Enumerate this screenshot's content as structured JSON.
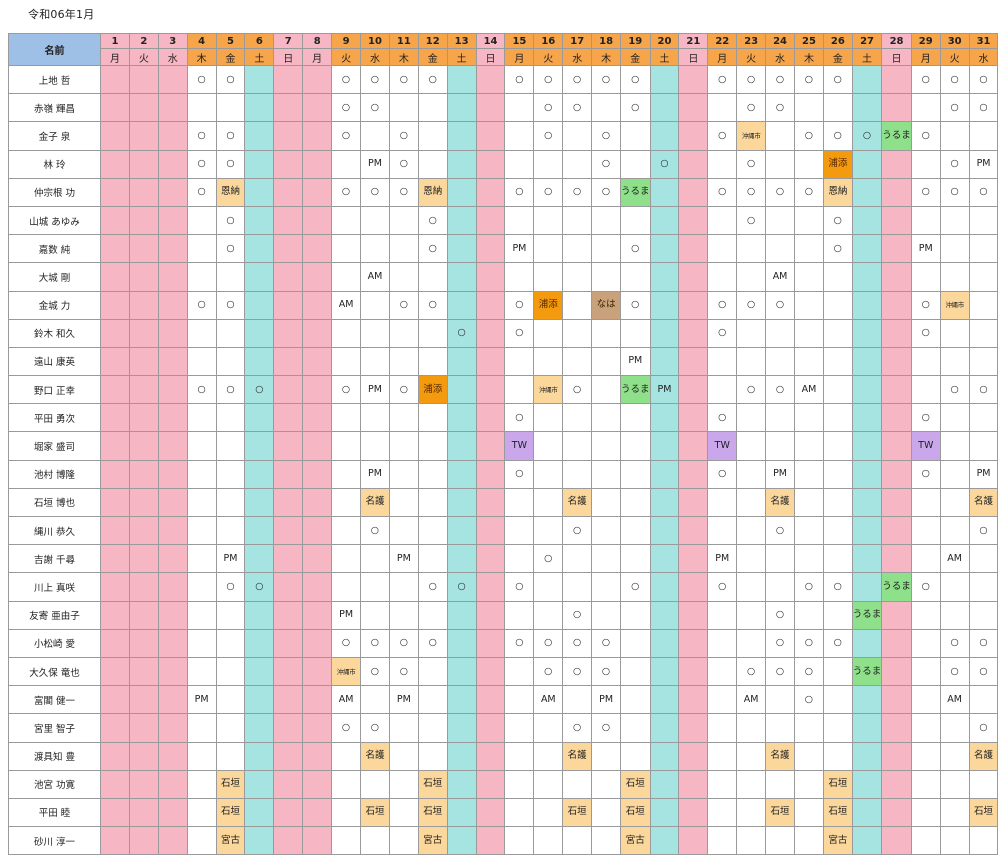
{
  "title": "令和06年1月",
  "header": {
    "name_label": "名前"
  },
  "days": [
    {
      "n": "1",
      "w": "月"
    },
    {
      "n": "2",
      "w": "火"
    },
    {
      "n": "3",
      "w": "水"
    },
    {
      "n": "4",
      "w": "木"
    },
    {
      "n": "5",
      "w": "金"
    },
    {
      "n": "6",
      "w": "土"
    },
    {
      "n": "7",
      "w": "日"
    },
    {
      "n": "8",
      "w": "月"
    },
    {
      "n": "9",
      "w": "火"
    },
    {
      "n": "10",
      "w": "水"
    },
    {
      "n": "11",
      "w": "木"
    },
    {
      "n": "12",
      "w": "金"
    },
    {
      "n": "13",
      "w": "土"
    },
    {
      "n": "14",
      "w": "日"
    },
    {
      "n": "15",
      "w": "月"
    },
    {
      "n": "16",
      "w": "火"
    },
    {
      "n": "17",
      "w": "水"
    },
    {
      "n": "18",
      "w": "木"
    },
    {
      "n": "19",
      "w": "金"
    },
    {
      "n": "20",
      "w": "土"
    },
    {
      "n": "21",
      "w": "日"
    },
    {
      "n": "22",
      "w": "月"
    },
    {
      "n": "23",
      "w": "火"
    },
    {
      "n": "24",
      "w": "水"
    },
    {
      "n": "25",
      "w": "木"
    },
    {
      "n": "26",
      "w": "金"
    },
    {
      "n": "27",
      "w": "土"
    },
    {
      "n": "28",
      "w": "日"
    },
    {
      "n": "29",
      "w": "月"
    },
    {
      "n": "30",
      "w": "火"
    },
    {
      "n": "31",
      "w": "水"
    }
  ],
  "pink_days": [
    1,
    2,
    3,
    7,
    8,
    14,
    21,
    28
  ],
  "teal_days": [
    6,
    13,
    20,
    27
  ],
  "colors": {
    "header_orange": "#f7a54b",
    "name_header_blue": "#9fc0e6",
    "holiday_pink": "#f7b6c4",
    "saturday_teal": "#a6e4e2",
    "badge_tan": "#fbd79c",
    "badge_orange": "#f39a0e",
    "badge_brown": "#c9a27b",
    "badge_green": "#8fe08a",
    "badge_purple": "#c9a7ea"
  },
  "people": [
    {
      "name": "上地 哲",
      "cells": {
        "4": "○",
        "5": "○",
        "9": "○",
        "10": "○",
        "11": "○",
        "12": "○",
        "15": "○",
        "16": "○",
        "17": "○",
        "18": "○",
        "19": "○",
        "22": "○",
        "23": "○",
        "24": "○",
        "25": "○",
        "26": "○",
        "29": "○",
        "30": "○",
        "31": "○"
      }
    },
    {
      "name": "赤嶺 輝昌",
      "cells": {
        "9": "○",
        "10": "○",
        "16": "○",
        "17": "○",
        "19": "○",
        "23": "○",
        "24": "○",
        "30": "○",
        "31": "○"
      }
    },
    {
      "name": "金子 泉",
      "cells": {
        "4": "○",
        "5": "○",
        "9": "○",
        "11": "○",
        "16": "○",
        "18": "○",
        "22": "○",
        "23": "沖縄市",
        "25": "○",
        "26": "○",
        "27": "○",
        "28": "うるま",
        "29": "○"
      }
    },
    {
      "name": "林 玲",
      "cells": {
        "4": "○",
        "5": "○",
        "10": "PM",
        "11": "○",
        "18": "○",
        "20": "○",
        "23": "○",
        "26": "浦添",
        "30": "○",
        "31": "PM"
      }
    },
    {
      "name": "仲宗根 功",
      "cells": {
        "4": "○",
        "5": "恩納",
        "9": "○",
        "10": "○",
        "11": "○",
        "12": "恩納",
        "15": "○",
        "16": "○",
        "17": "○",
        "18": "○",
        "19": "うるま",
        "22": "○",
        "23": "○",
        "24": "○",
        "25": "○",
        "26": "恩納",
        "29": "○",
        "30": "○",
        "31": "○"
      }
    },
    {
      "name": "山城 あゆみ",
      "cells": {
        "5": "○",
        "12": "○",
        "23": "○",
        "26": "○"
      }
    },
    {
      "name": "嘉数 純",
      "cells": {
        "5": "○",
        "12": "○",
        "15": "PM",
        "19": "○",
        "26": "○",
        "29": "PM"
      }
    },
    {
      "name": "大城 剛",
      "cells": {
        "10": "AM",
        "24": "AM"
      }
    },
    {
      "name": "金城 力",
      "cells": {
        "4": "○",
        "5": "○",
        "9": "AM",
        "11": "○",
        "12": "○",
        "15": "○",
        "16": "浦添",
        "18": "なは",
        "19": "○",
        "22": "○",
        "23": "○",
        "24": "○",
        "29": "○",
        "30": "沖縄市"
      }
    },
    {
      "name": "鈴木 和久",
      "cells": {
        "13": "○",
        "15": "○",
        "22": "○",
        "29": "○"
      }
    },
    {
      "name": "遠山 康英",
      "cells": {
        "19": "PM"
      }
    },
    {
      "name": "野口 正幸",
      "cells": {
        "4": "○",
        "5": "○",
        "6": "○",
        "9": "○",
        "10": "PM",
        "11": "○",
        "12": "浦添",
        "16": "沖縄市",
        "17": "○",
        "19": "うるま",
        "20": "PM",
        "23": "○",
        "24": "○",
        "25": "AM",
        "30": "○",
        "31": "○"
      }
    },
    {
      "name": "平田 勇次",
      "cells": {
        "15": "○",
        "22": "○",
        "29": "○"
      }
    },
    {
      "name": "堀家 盛司",
      "cells": {
        "15": "TW",
        "22": "TW",
        "29": "TW"
      }
    },
    {
      "name": "池村 博隆",
      "cells": {
        "10": "PM",
        "15": "○",
        "22": "○",
        "24": "PM",
        "29": "○",
        "31": "PM"
      }
    },
    {
      "name": "石垣 博也",
      "cells": {
        "10": "名護",
        "17": "名護",
        "24": "名護",
        "31": "名護"
      }
    },
    {
      "name": "縄川 恭久",
      "cells": {
        "10": "○",
        "17": "○",
        "24": "○",
        "31": "○"
      }
    },
    {
      "name": "吉謝 千尋",
      "cells": {
        "5": "PM",
        "11": "PM",
        "16": "○",
        "22": "PM",
        "30": "AM"
      }
    },
    {
      "name": "川上 真咲",
      "cells": {
        "5": "○",
        "6": "○",
        "12": "○",
        "13": "○",
        "15": "○",
        "19": "○",
        "22": "○",
        "25": "○",
        "26": "○",
        "28": "うるま",
        "29": "○"
      }
    },
    {
      "name": "友寄 亜由子",
      "cells": {
        "9": "PM",
        "17": "○",
        "24": "○",
        "27": "うるま"
      }
    },
    {
      "name": "小松崎 愛",
      "cells": {
        "9": "○",
        "10": "○",
        "11": "○",
        "12": "○",
        "15": "○",
        "16": "○",
        "17": "○",
        "18": "○",
        "24": "○",
        "25": "○",
        "26": "○",
        "30": "○",
        "31": "○"
      }
    },
    {
      "name": "大久保 竜也",
      "cells": {
        "9": "沖縄市",
        "10": "○",
        "11": "○",
        "16": "○",
        "17": "○",
        "18": "○",
        "23": "○",
        "24": "○",
        "25": "○",
        "27": "うるま",
        "30": "○",
        "31": "○"
      }
    },
    {
      "name": "富閣 健一",
      "cells": {
        "4": "PM",
        "9": "AM",
        "11": "PM",
        "16": "AM",
        "18": "PM",
        "23": "AM",
        "25": "○",
        "30": "AM"
      }
    },
    {
      "name": "宮里 智子",
      "cells": {
        "9": "○",
        "10": "○",
        "17": "○",
        "18": "○",
        "31": "○"
      }
    },
    {
      "name": "渡具知 豊",
      "cells": {
        "10": "名護",
        "17": "名護",
        "24": "名護",
        "31": "名護"
      }
    },
    {
      "name": "池宮 功寛",
      "cells": {
        "5": "石垣",
        "12": "石垣",
        "19": "石垣",
        "26": "石垣"
      }
    },
    {
      "name": "平田 睦",
      "cells": {
        "5": "石垣",
        "10": "石垣",
        "12": "石垣",
        "17": "石垣",
        "19": "石垣",
        "24": "石垣",
        "26": "石垣",
        "31": "石垣"
      }
    },
    {
      "name": "砂川 淳一",
      "cells": {
        "5": "宮古",
        "12": "宮古",
        "19": "宮古",
        "26": "宮古"
      }
    }
  ]
}
